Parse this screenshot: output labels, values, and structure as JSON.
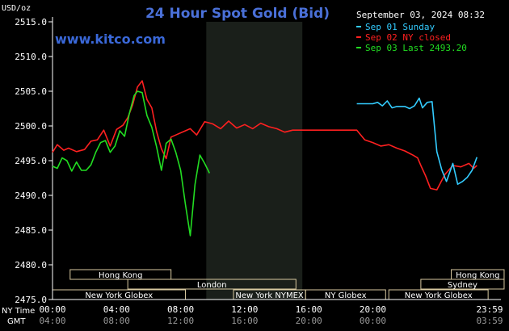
{
  "chart_data": {
    "type": "line",
    "title": "24 Hour Spot Gold (Bid)",
    "date_label": "September 03, 2024 08:32",
    "watermark": "www.kitco.com",
    "y_unit": "USD/oz",
    "ylim": [
      2475,
      2515
    ],
    "y_ticks": [
      "2515.0",
      "2510.0",
      "2505.0",
      "2500.0",
      "2495.0",
      "2490.0",
      "2485.0",
      "2480.0",
      "2475.0"
    ],
    "x_ticks_ny": [
      "00:00",
      "04:00",
      "08:00",
      "12:00",
      "16:00",
      "20:00",
      "23:59"
    ],
    "x_ticks_gmt": [
      "04:00",
      "08:00",
      "12:00",
      "16:00",
      "20:00",
      "00:00",
      "03:59"
    ],
    "x_row_labels": [
      "NY Time",
      "GMT"
    ],
    "legend": [
      {
        "label": "Sep 01 Sunday",
        "color": "#33ccff"
      },
      {
        "label": "Sep 02 NY closed",
        "color": "#ff2020"
      },
      {
        "label": "Sep 03 Last 2493.20",
        "color": "#22dd22"
      }
    ],
    "sessions": [
      {
        "label": "Hong Kong",
        "start": 1.1,
        "end": 7.4,
        "row": 0
      },
      {
        "label": "London",
        "start": 4.7,
        "end": 15.2,
        "row": 1
      },
      {
        "label": "New York Globex",
        "start": 0,
        "end": 8.3,
        "row": 2
      },
      {
        "label": "New York NYMEX",
        "start": 11.3,
        "end": 15.8,
        "row": 2
      },
      {
        "label": "NY Globex",
        "start": 15.8,
        "end": 20.8,
        "row": 2
      },
      {
        "label": "Hong Kong",
        "start": 24.9,
        "end": 28.2,
        "row": 0
      },
      {
        "label": "Sydney",
        "start": 23.0,
        "end": 28.2,
        "row": 1
      },
      {
        "label": "New York Globex",
        "start": 21.0,
        "end": 27.2,
        "row": 2
      }
    ],
    "series": [
      {
        "name": "Sep 02 NY closed",
        "color": "#ff2020",
        "x": [
          0,
          0.3,
          0.7,
          1.0,
          1.5,
          2.0,
          2.4,
          2.8,
          3.2,
          3.6,
          4.0,
          4.4,
          4.7,
          5.0,
          5.3,
          5.6,
          5.9,
          6.2,
          6.5,
          6.8,
          7.1,
          7.4,
          7.8,
          8.2,
          8.6,
          9.0,
          9.5,
          10.0,
          10.5,
          11.0,
          11.5,
          12.0,
          12.5,
          13.0,
          13.5,
          14.0,
          14.5,
          15.0,
          16.0,
          17.0,
          18.0,
          19.0,
          19.5,
          20.0,
          20.5,
          21.0,
          21.5,
          22.0,
          22.5,
          22.8,
          23.0,
          23.3,
          23.6,
          24.0,
          24.5,
          25.0,
          25.5,
          26.0,
          26.3,
          26.5
        ],
        "y": [
          2496.2,
          2497.3,
          2496.5,
          2496.8,
          2496.3,
          2496.6,
          2497.8,
          2498.0,
          2499.4,
          2497.1,
          2499.5,
          2500.1,
          2501.2,
          2503.0,
          2505.6,
          2506.5,
          2503.8,
          2502.6,
          2499.2,
          2496.7,
          2495.3,
          2498.4,
          2498.8,
          2499.2,
          2499.6,
          2498.7,
          2500.6,
          2500.3,
          2499.6,
          2500.7,
          2499.7,
          2500.2,
          2499.6,
          2500.4,
          2499.9,
          2499.6,
          2499.1,
          2499.4,
          2499.4,
          2499.4,
          2499.4,
          2499.4,
          2498.0,
          2497.6,
          2497.1,
          2497.3,
          2496.8,
          2496.4,
          2495.8,
          2495.4,
          2494.3,
          2492.8,
          2491.0,
          2490.8,
          2493.0,
          2494.3,
          2494.1,
          2494.6,
          2493.9,
          2494.3
        ]
      },
      {
        "name": "Sep 01 Sunday",
        "color": "#33ccff",
        "x": [
          19.0,
          19.5,
          20.0,
          20.3,
          20.6,
          20.9,
          21.2,
          21.5,
          22.0,
          22.3,
          22.6,
          22.9,
          23.1,
          23.4,
          23.7,
          24.0,
          24.3,
          24.6,
          25.0,
          25.3,
          25.6,
          25.9,
          26.2,
          26.5
        ],
        "y": [
          2503.2,
          2503.2,
          2503.2,
          2503.4,
          2502.9,
          2503.6,
          2502.6,
          2502.8,
          2502.8,
          2502.5,
          2502.9,
          2504.0,
          2502.6,
          2503.4,
          2503.5,
          2496.3,
          2493.7,
          2492.0,
          2494.6,
          2491.6,
          2492.0,
          2492.6,
          2493.6,
          2495.5
        ]
      },
      {
        "name": "Sep 03 Last 2493.20",
        "color": "#22dd22",
        "x": [
          0,
          0.3,
          0.6,
          0.9,
          1.2,
          1.5,
          1.8,
          2.1,
          2.4,
          2.7,
          3.0,
          3.3,
          3.6,
          3.9,
          4.2,
          4.5,
          4.8,
          5.1,
          5.3,
          5.6,
          5.9,
          6.2,
          6.5,
          6.8,
          7.1,
          7.4,
          7.7,
          8.0,
          8.3,
          8.6,
          8.9,
          9.2,
          9.5,
          9.8
        ],
        "y": [
          2494.2,
          2493.9,
          2495.4,
          2495.0,
          2493.5,
          2494.8,
          2493.6,
          2493.6,
          2494.4,
          2496.2,
          2497.6,
          2497.9,
          2496.2,
          2497.1,
          2499.3,
          2498.5,
          2501.8,
          2504.4,
          2505.0,
          2504.8,
          2501.5,
          2499.8,
          2497.0,
          2493.6,
          2497.5,
          2498.1,
          2496.2,
          2493.6,
          2488.7,
          2484.2,
          2491.6,
          2495.8,
          2494.6,
          2493.2
        ]
      }
    ],
    "grid": false
  }
}
